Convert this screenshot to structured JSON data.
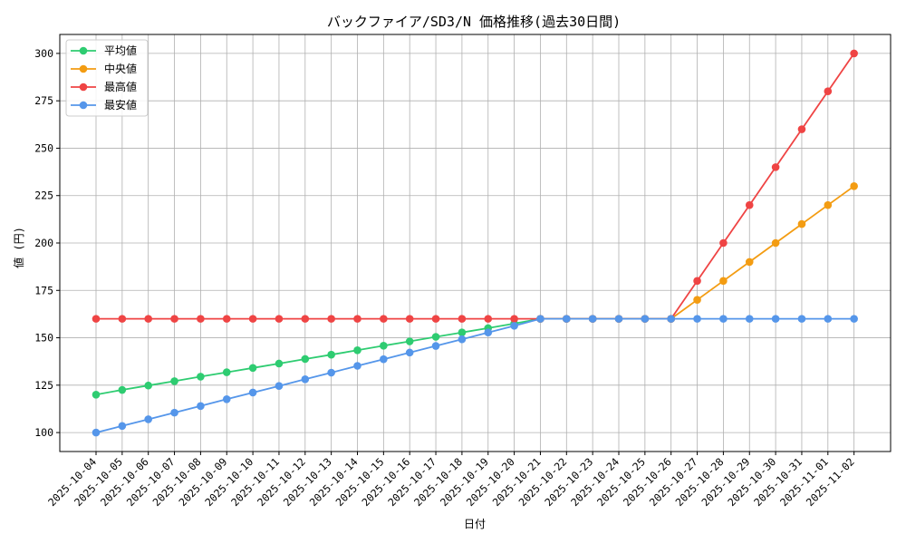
{
  "chart_data": {
    "type": "line",
    "title": "バックファイア/SD3/N 価格推移(過去30日間)",
    "xlabel": "日付",
    "ylabel": "値 (円)",
    "ylim": [
      90,
      310
    ],
    "yticks": [
      100,
      125,
      150,
      175,
      200,
      225,
      250,
      275,
      300
    ],
    "grid": true,
    "legend_position": "top-left",
    "categories": [
      "2025-10-04",
      "2025-10-05",
      "2025-10-06",
      "2025-10-07",
      "2025-10-08",
      "2025-10-09",
      "2025-10-10",
      "2025-10-11",
      "2025-10-12",
      "2025-10-13",
      "2025-10-14",
      "2025-10-15",
      "2025-10-16",
      "2025-10-17",
      "2025-10-18",
      "2025-10-19",
      "2025-10-20",
      "2025-10-21",
      "2025-10-22",
      "2025-10-23",
      "2025-10-24",
      "2025-10-25",
      "2025-10-26",
      "2025-10-27",
      "2025-10-28",
      "2025-10-29",
      "2025-10-30",
      "2025-10-31",
      "2025-11-01",
      "2025-11-02"
    ],
    "series": [
      {
        "name": "平均値",
        "color": "#2ecc71",
        "values": [
          120,
          122.5,
          124.8,
          127.1,
          129.5,
          131.8,
          134.1,
          136.4,
          138.8,
          141.1,
          143.4,
          145.8,
          148.1,
          150.5,
          152.8,
          155.1,
          157.5,
          160,
          160,
          160,
          160,
          160,
          160,
          null,
          null,
          null,
          null,
          null,
          null,
          null
        ]
      },
      {
        "name": "中央値",
        "color": "#f39c12",
        "values": [
          null,
          null,
          null,
          null,
          null,
          null,
          null,
          null,
          null,
          null,
          null,
          null,
          null,
          null,
          null,
          null,
          null,
          160,
          160,
          160,
          160,
          160,
          160,
          170,
          180,
          190,
          200,
          210,
          220,
          230
        ]
      },
      {
        "name": "最高値",
        "color": "#ef4444",
        "values": [
          160,
          160,
          160,
          160,
          160,
          160,
          160,
          160,
          160,
          160,
          160,
          160,
          160,
          160,
          160,
          160,
          160,
          160,
          160,
          160,
          160,
          160,
          160,
          180,
          200,
          220,
          240,
          260,
          280,
          300
        ]
      },
      {
        "name": "最安値",
        "color": "#5596ea",
        "values": [
          100,
          103.5,
          107,
          110.5,
          114,
          117.6,
          121.1,
          124.6,
          128.1,
          131.6,
          135.2,
          138.7,
          142.2,
          145.7,
          149.2,
          152.8,
          156.3,
          160,
          160,
          160,
          160,
          160,
          160,
          160,
          160,
          160,
          160,
          160,
          160,
          160
        ]
      }
    ]
  }
}
